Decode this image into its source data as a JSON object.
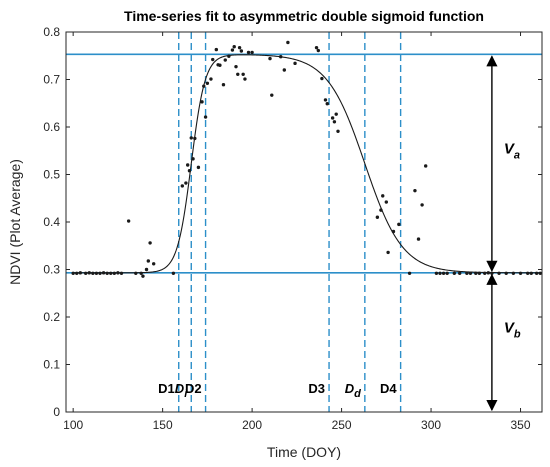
{
  "chart_data": {
    "type": "scatter",
    "title": "Time-series fit to asymmetric double sigmoid function",
    "xlabel": "Time (DOY)",
    "ylabel": "NDVI (Plot Average)",
    "xlim": [
      96,
      362
    ],
    "ylim": [
      0,
      0.8
    ],
    "x_ticks": [
      100,
      150,
      200,
      250,
      300,
      350
    ],
    "y_ticks": [
      0,
      0.1,
      0.2,
      0.3,
      0.4,
      0.5,
      0.6,
      0.7,
      0.8
    ],
    "x_tick_labels": [
      "100",
      "150",
      "200",
      "250",
      "300",
      "350"
    ],
    "y_tick_labels": [
      "0",
      "0.1",
      "0.2",
      "0.3",
      "0.4",
      "0.5",
      "0.6",
      "0.7",
      "0.8"
    ],
    "grid": false,
    "colors": {
      "points": "#1a1a1a",
      "fit": "#1a1a1a",
      "reference": "#2c8fc9",
      "arrows": "#000000"
    },
    "reference_lines": [
      {
        "name": "V_top",
        "y": 0.753
      },
      {
        "name": "V_base",
        "y": 0.293
      }
    ],
    "phase_markers": [
      {
        "x": 159,
        "label": "D1",
        "label_main": "D1",
        "label_sub": ""
      },
      {
        "x": 166,
        "label": "Di",
        "label_main": "D",
        "label_sub": "i"
      },
      {
        "x": 174,
        "label": "D2",
        "label_main": "D2",
        "label_sub": ""
      },
      {
        "x": 243,
        "label": "D3",
        "label_main": "D3",
        "label_sub": ""
      },
      {
        "x": 263,
        "label": "Dd",
        "label_main": "D",
        "label_sub": "d"
      },
      {
        "x": 283,
        "label": "D4",
        "label_main": "D4",
        "label_sub": ""
      }
    ],
    "arrows": [
      {
        "x": 334,
        "from": 0.293,
        "to": 0.753,
        "label_main": "V",
        "label_sub": "a"
      },
      {
        "x": 334,
        "from": 0.293,
        "to": 0.0,
        "label_main": "V",
        "label_sub": "b"
      }
    ],
    "fit_curve": {
      "model": "asymmetric double sigmoid",
      "baseline": 0.293,
      "amplitude": 0.46,
      "rise_midpoint": 166,
      "rise_scale": 3.9,
      "decline_midpoint": 263,
      "decline_scale": 10.5,
      "x_range": [
        100,
        362
      ]
    },
    "points": [
      [
        100,
        0.292
      ],
      [
        102,
        0.292
      ],
      [
        104,
        0.293
      ],
      [
        107,
        0.292
      ],
      [
        109,
        0.293
      ],
      [
        111,
        0.292
      ],
      [
        113,
        0.292
      ],
      [
        115,
        0.292
      ],
      [
        117,
        0.293
      ],
      [
        119,
        0.292
      ],
      [
        121,
        0.292
      ],
      [
        123,
        0.292
      ],
      [
        125,
        0.293
      ],
      [
        127,
        0.292
      ],
      [
        131,
        0.402
      ],
      [
        135,
        0.292
      ],
      [
        138,
        0.292
      ],
      [
        139,
        0.286
      ],
      [
        141,
        0.3
      ],
      [
        142,
        0.318
      ],
      [
        143,
        0.356
      ],
      [
        145,
        0.312
      ],
      [
        156,
        0.292
      ],
      [
        161,
        0.476
      ],
      [
        163,
        0.482
      ],
      [
        164,
        0.52
      ],
      [
        165,
        0.508
      ],
      [
        166,
        0.577
      ],
      [
        167,
        0.533
      ],
      [
        168,
        0.576
      ],
      [
        170,
        0.515
      ],
      [
        172,
        0.653
      ],
      [
        173,
        0.686
      ],
      [
        174,
        0.621
      ],
      [
        175,
        0.692
      ],
      [
        177,
        0.701
      ],
      [
        178,
        0.742
      ],
      [
        180,
        0.763
      ],
      [
        181,
        0.731
      ],
      [
        182,
        0.73
      ],
      [
        184,
        0.689
      ],
      [
        185,
        0.741
      ],
      [
        187,
        0.749
      ],
      [
        189,
        0.762
      ],
      [
        190,
        0.769
      ],
      [
        191,
        0.727
      ],
      [
        192,
        0.711
      ],
      [
        193,
        0.767
      ],
      [
        194,
        0.76
      ],
      [
        195,
        0.711
      ],
      [
        196,
        0.701
      ],
      [
        198,
        0.757
      ],
      [
        200,
        0.757
      ],
      [
        210,
        0.744
      ],
      [
        211,
        0.667
      ],
      [
        216,
        0.748
      ],
      [
        218,
        0.72
      ],
      [
        220,
        0.778
      ],
      [
        224,
        0.734
      ],
      [
        236,
        0.767
      ],
      [
        237,
        0.761
      ],
      [
        239,
        0.702
      ],
      [
        241,
        0.657
      ],
      [
        242,
        0.649
      ],
      [
        245,
        0.619
      ],
      [
        246,
        0.611
      ],
      [
        247,
        0.627
      ],
      [
        248,
        0.591
      ],
      [
        270,
        0.41
      ],
      [
        272,
        0.425
      ],
      [
        273,
        0.455
      ],
      [
        275,
        0.442
      ],
      [
        276,
        0.336
      ],
      [
        279,
        0.38
      ],
      [
        282,
        0.395
      ],
      [
        288,
        0.292
      ],
      [
        291,
        0.466
      ],
      [
        293,
        0.364
      ],
      [
        295,
        0.436
      ],
      [
        297,
        0.518
      ],
      [
        303,
        0.292
      ],
      [
        305,
        0.292
      ],
      [
        307,
        0.292
      ],
      [
        309,
        0.292
      ],
      [
        313,
        0.292
      ],
      [
        316,
        0.292
      ],
      [
        320,
        0.292
      ],
      [
        322,
        0.292
      ],
      [
        325,
        0.292
      ],
      [
        327,
        0.292
      ],
      [
        330,
        0.292
      ],
      [
        332,
        0.293
      ],
      [
        334,
        0.292
      ],
      [
        338,
        0.292
      ],
      [
        342,
        0.292
      ],
      [
        346,
        0.292
      ],
      [
        350,
        0.292
      ],
      [
        354,
        0.292
      ],
      [
        356,
        0.292
      ],
      [
        359,
        0.292
      ],
      [
        361,
        0.292
      ]
    ]
  }
}
